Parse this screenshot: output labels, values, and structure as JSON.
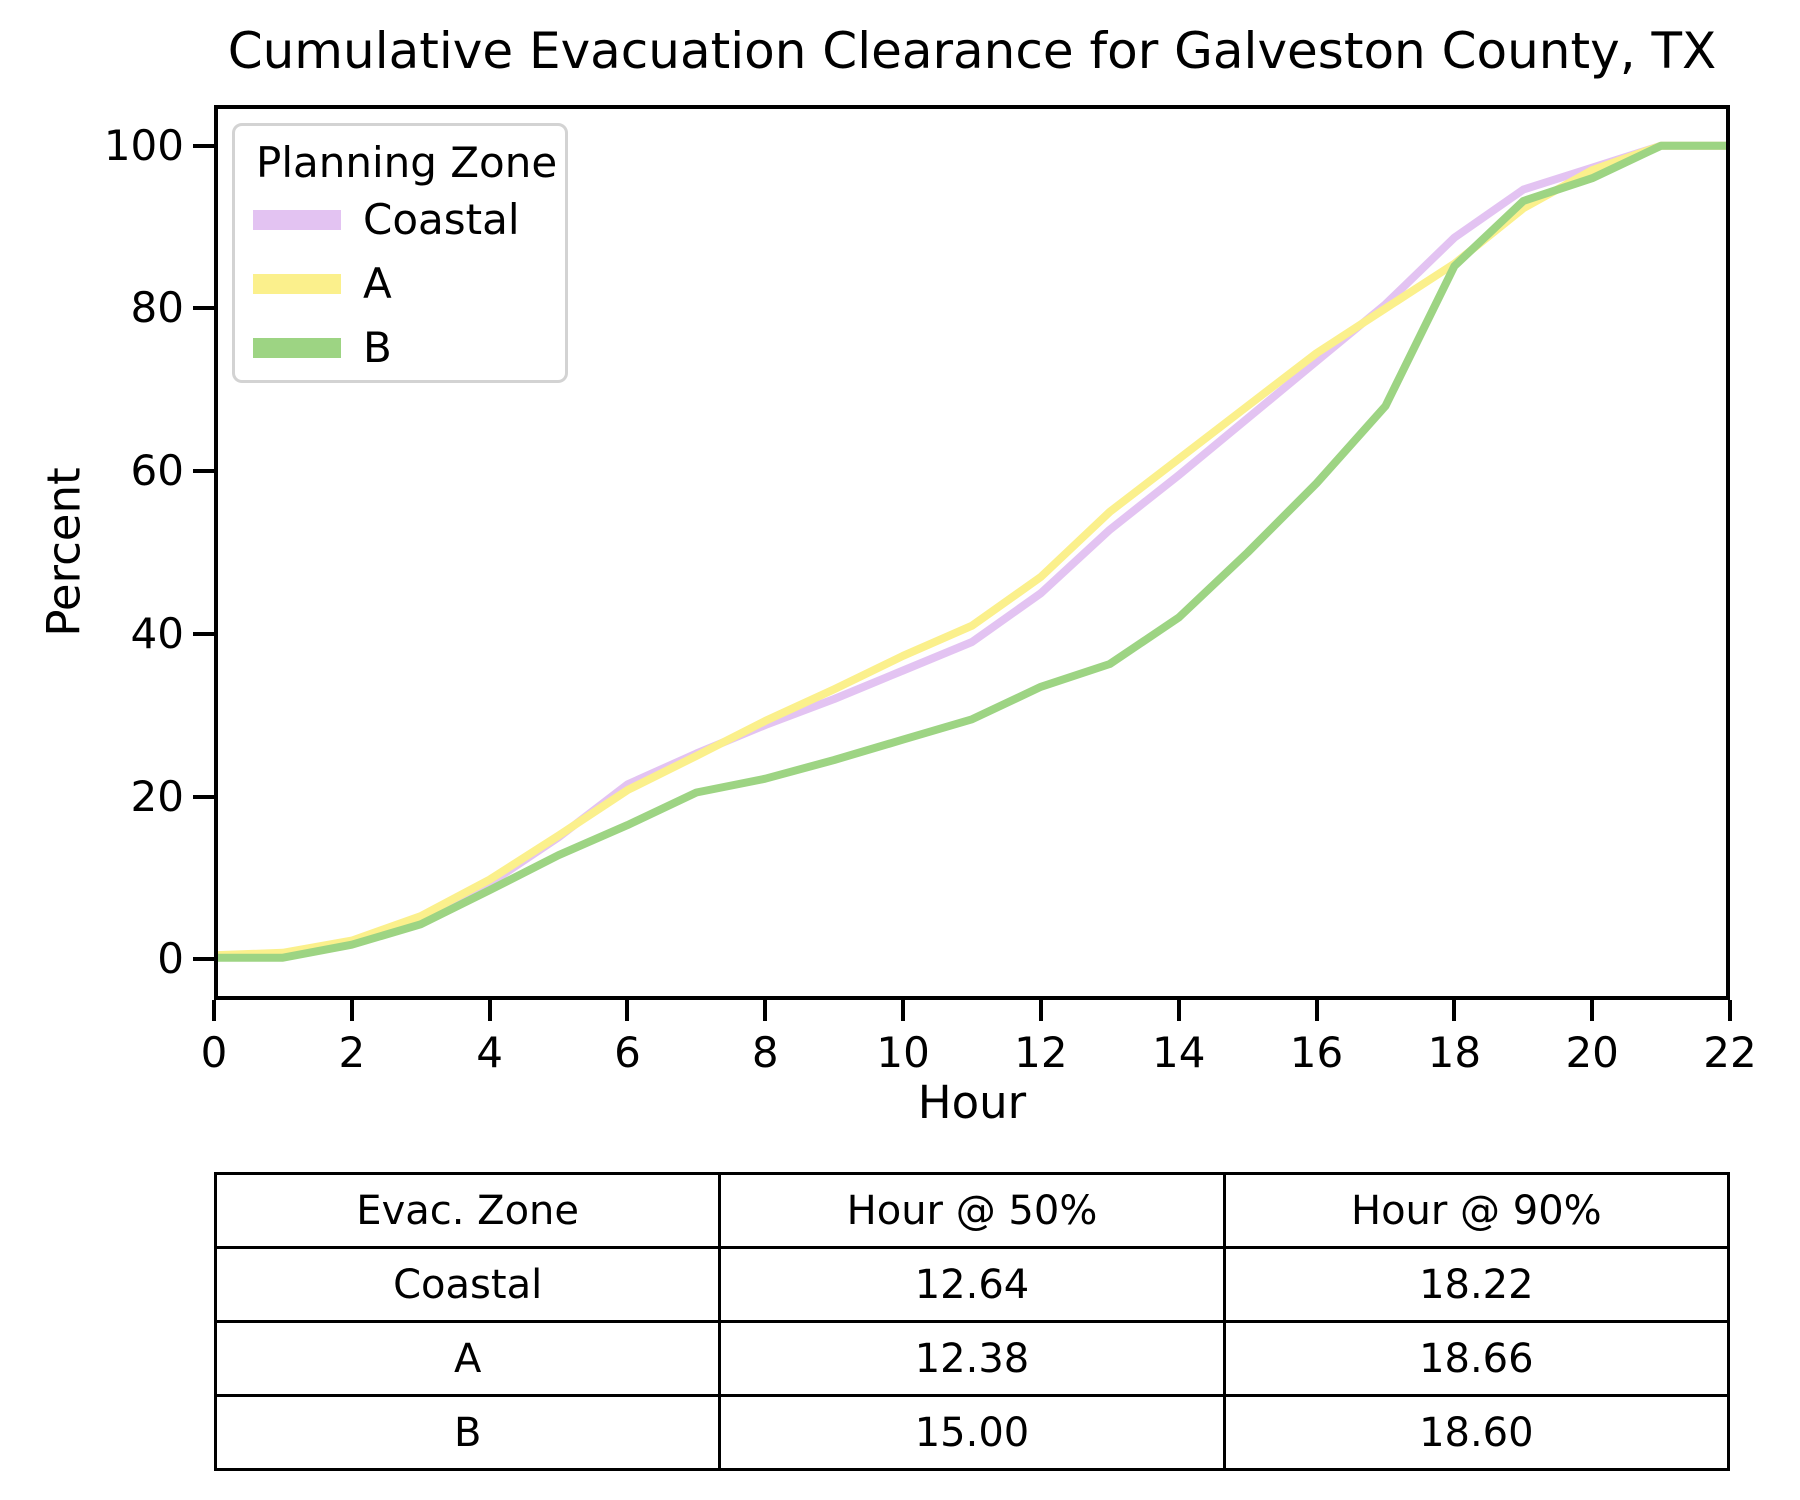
{
  "chart_data": {
    "type": "line",
    "title": "Cumulative Evacuation Clearance for Galveston County, TX",
    "xlabel": "Hour",
    "ylabel": "Percent",
    "xlim": [
      0,
      22
    ],
    "ylim": [
      -5,
      105
    ],
    "xticks": [
      0,
      2,
      4,
      6,
      8,
      10,
      12,
      14,
      16,
      18,
      20,
      22
    ],
    "yticks": [
      0,
      20,
      40,
      60,
      80,
      100
    ],
    "grid": false,
    "legend": {
      "title": "Planning Zone",
      "position": "upper left"
    },
    "x": [
      0,
      1,
      2,
      3,
      4,
      5,
      6,
      7,
      8,
      9,
      10,
      11,
      12,
      13,
      14,
      15,
      16,
      17,
      18,
      19,
      20,
      21,
      22
    ],
    "series": [
      {
        "name": "Coastal",
        "color": "#e3c3f2",
        "values": [
          0.3,
          0.5,
          2.0,
          5.0,
          9.3,
          15.0,
          21.5,
          25.3,
          28.8,
          32.0,
          35.5,
          39.0,
          45.0,
          52.8,
          59.5,
          66.5,
          73.5,
          80.5,
          88.7,
          94.6,
          97.3,
          100,
          100
        ]
      },
      {
        "name": "A",
        "color": "#fbf08c",
        "values": [
          0.5,
          0.8,
          2.3,
          5.3,
          9.8,
          15.2,
          20.8,
          25.0,
          29.3,
          33.2,
          37.3,
          41.0,
          47.0,
          55.0,
          61.5,
          68.0,
          74.5,
          80.0,
          85.5,
          92.3,
          97.0,
          100,
          100
        ]
      },
      {
        "name": "B",
        "color": "#9dd483",
        "values": [
          0.2,
          0.2,
          1.8,
          4.3,
          8.5,
          12.8,
          16.5,
          20.5,
          22.2,
          24.5,
          27.0,
          29.5,
          33.5,
          36.3,
          42.0,
          50.0,
          58.5,
          68.0,
          85.2,
          93.2,
          96.0,
          100,
          100
        ]
      }
    ]
  },
  "table": {
    "columns": [
      "Evac. Zone",
      "Hour @ 50%",
      "Hour @ 90%"
    ],
    "rows": [
      [
        "Coastal",
        "12.64",
        "18.22"
      ],
      [
        "A",
        "12.38",
        "18.66"
      ],
      [
        "B",
        "15.00",
        "18.60"
      ]
    ]
  }
}
